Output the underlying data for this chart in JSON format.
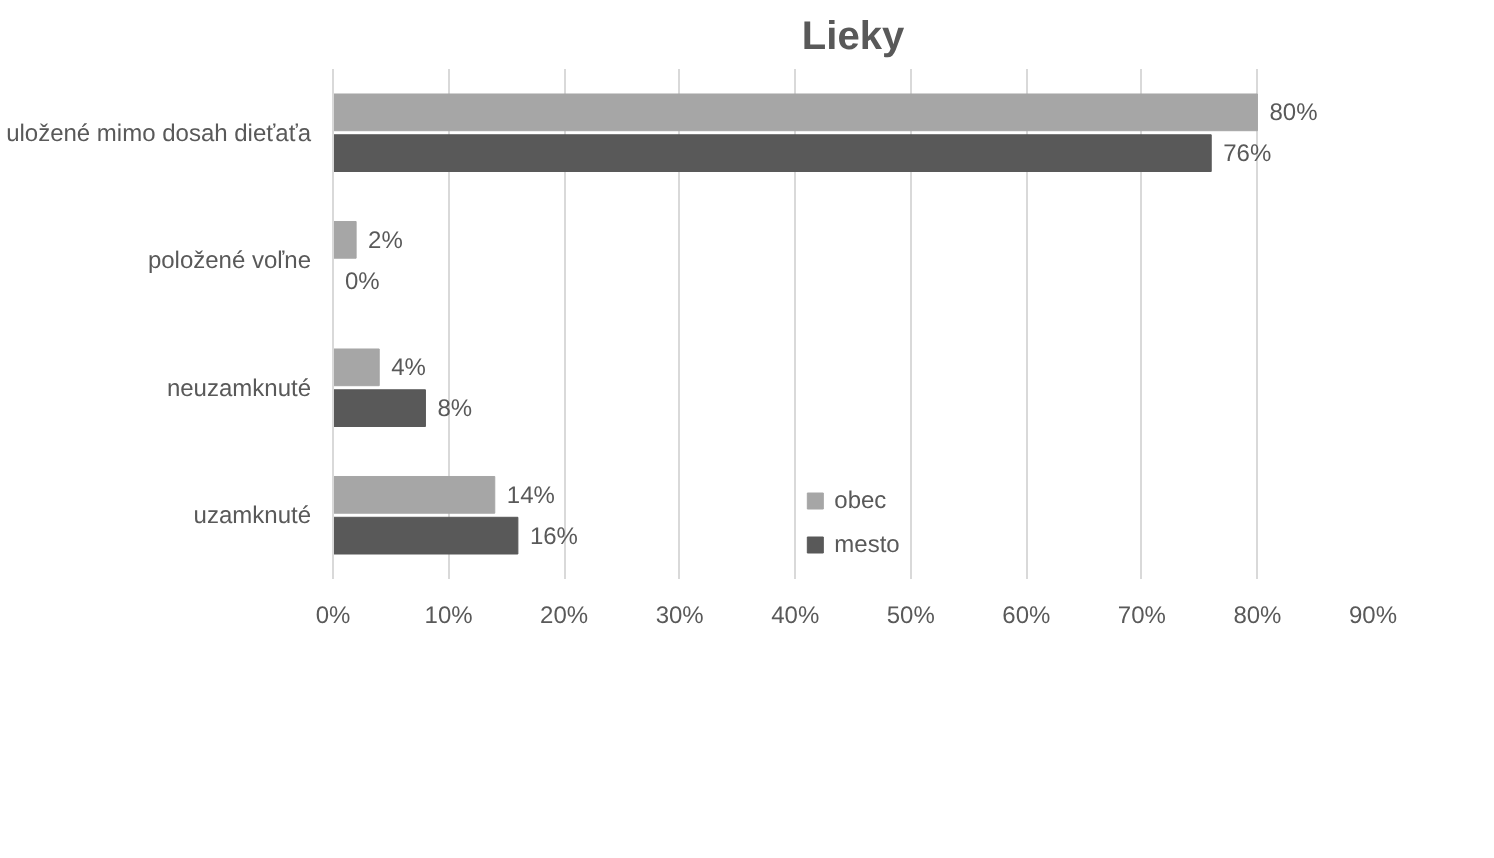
{
  "chart_data": {
    "type": "bar",
    "orientation": "horizontal",
    "title": "Lieky",
    "categories": [
      "uložené mimo dosah dieťaťa",
      "položené voľne",
      "neuzamknuté",
      "uzamknuté"
    ],
    "series": [
      {
        "name": "obec",
        "color": "#a6a6a6",
        "values": [
          80,
          2,
          4,
          14
        ],
        "value_labels": [
          "80%",
          "2%",
          "4%",
          "14%"
        ]
      },
      {
        "name": "mesto",
        "color": "#595959",
        "values": [
          76,
          0,
          8,
          16
        ],
        "value_labels": [
          "76%",
          "0%",
          "8%",
          "16%"
        ]
      }
    ],
    "xlim": [
      0,
      90
    ],
    "xticks": [
      {
        "value": 0,
        "label": "0%"
      },
      {
        "value": 10,
        "label": "10%"
      },
      {
        "value": 20,
        "label": "20%"
      },
      {
        "value": 30,
        "label": "30%"
      },
      {
        "value": 40,
        "label": "40%"
      },
      {
        "value": 50,
        "label": "50%"
      },
      {
        "value": 60,
        "label": "60%"
      },
      {
        "value": 70,
        "label": "70%"
      },
      {
        "value": 80,
        "label": "80%"
      },
      {
        "value": 90,
        "label": "90%"
      }
    ],
    "grid": "x",
    "legend": "bottom"
  }
}
